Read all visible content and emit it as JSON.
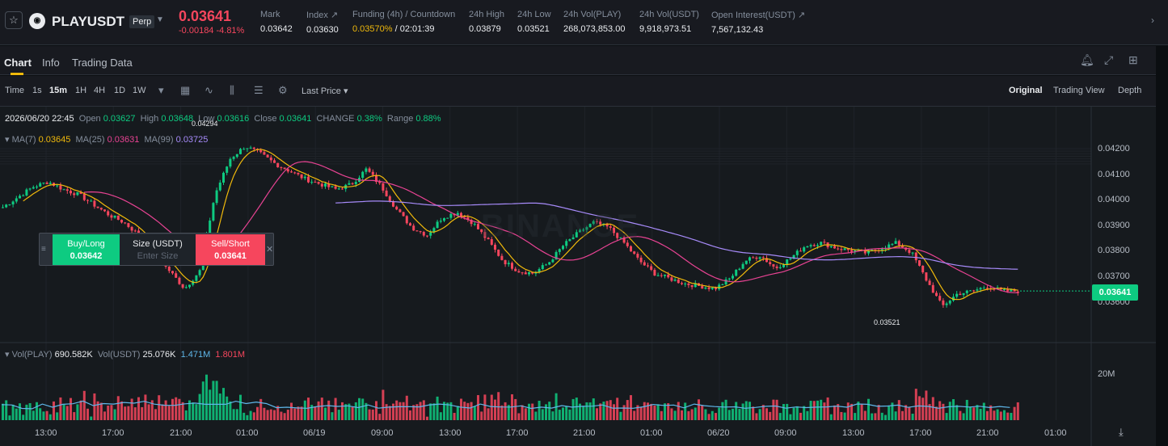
{
  "header": {
    "star_icon": "☆",
    "symbol": "PLAYUSDT",
    "badge": "Perp",
    "price": "0.03641",
    "change": "-0.00184 -4.81%",
    "stats": [
      {
        "label": "Mark",
        "value": "0.03642"
      },
      {
        "label": "Index ↗",
        "value": "0.03630"
      },
      {
        "label": "Funding (4h) / Countdown",
        "value_a": "0.03570%",
        "value_b": " / 02:01:39"
      },
      {
        "label": "24h High",
        "value": "0.03879"
      },
      {
        "label": "24h Low",
        "value": "0.03521"
      },
      {
        "label": "24h Vol(PLAY)",
        "value": "268,073,853.00"
      },
      {
        "label": "24h Vol(USDT)",
        "value": "9,918,973.51"
      },
      {
        "label": "Open Interest(USDT) ↗",
        "value": "7,567,132.43"
      }
    ]
  },
  "tabs": [
    {
      "label": "Chart"
    },
    {
      "label": "Info"
    },
    {
      "label": "Trading Data"
    }
  ],
  "toolbar": {
    "intervals": [
      "Time",
      "1s",
      "15m",
      "1H",
      "4H",
      "1D",
      "1W"
    ],
    "price_type": "Last Price ▾",
    "views": [
      "Original",
      "Trading View",
      "Depth"
    ]
  },
  "ohlc": {
    "date": "2026/06/20 22:45",
    "open_l": "Open",
    "open": "0.03627",
    "high_l": "High",
    "high": "0.03648",
    "low_l": "Low",
    "low": "0.03616",
    "close_l": "Close",
    "close": "0.03641",
    "change_l": "CHANGE",
    "change": "0.38%",
    "range_l": "Range",
    "range": "0.88%"
  },
  "ma": {
    "ma7_l": "MA(7)",
    "ma7": "0.03645",
    "ma25_l": "MA(25)",
    "ma25": "0.03631",
    "ma99_l": "MA(99)",
    "ma99": "0.03725"
  },
  "vol": {
    "l1": "Vol(PLAY)",
    "v1": "690.582K",
    "l2": "Vol(USDT)",
    "v2": "25.076K",
    "v3": "1.471M",
    "v4": "1.801M",
    "axis": "20M"
  },
  "yaxis": [
    "0.04200",
    "0.04100",
    "0.04000",
    "0.03900",
    "0.03800",
    "0.03700",
    "0.03600"
  ],
  "xaxis": [
    "13:00",
    "17:00",
    "21:00",
    "01:00",
    "06/19",
    "09:00",
    "13:00",
    "17:00",
    "21:00",
    "01:00",
    "06/20",
    "09:00",
    "13:00",
    "17:00",
    "21:00",
    "01:00"
  ],
  "current_price": "0.03641",
  "high_marker": "0.04294",
  "low_marker": "0.03521",
  "watermark": "BINANCE",
  "order_panel": {
    "buy_label": "Buy/Long",
    "buy_price": "0.03642",
    "size_label": "Size (USDT)",
    "size_placeholder": "Enter Size",
    "sell_label": "Sell/Short",
    "sell_price": "0.03641"
  },
  "chart_data": {
    "type": "candlestick",
    "ylim": [
      0.0355,
      0.0432
    ],
    "close_trend": [
      0.0397,
      0.0401,
      0.0405,
      0.0407,
      0.0404,
      0.0402,
      0.0398,
      0.0394,
      0.0391,
      0.0386,
      0.0378,
      0.0372,
      0.0365,
      0.0372,
      0.0402,
      0.0416,
      0.0421,
      0.0418,
      0.0414,
      0.0411,
      0.0408,
      0.0406,
      0.0404,
      0.0406,
      0.0412,
      0.0405,
      0.0396,
      0.0389,
      0.0386,
      0.0393,
      0.0395,
      0.0391,
      0.0384,
      0.0376,
      0.0372,
      0.0371,
      0.0375,
      0.0382,
      0.0387,
      0.0391,
      0.0389,
      0.0383,
      0.0376,
      0.0371,
      0.0369,
      0.0367,
      0.0366,
      0.0365,
      0.0369,
      0.0376,
      0.0378,
      0.0373,
      0.0377,
      0.0382,
      0.0383,
      0.0381,
      0.038,
      0.0379,
      0.0381,
      0.0383,
      0.0379,
      0.0368,
      0.0358,
      0.0363,
      0.0364,
      0.0366,
      0.0364,
      0.0364
    ]
  },
  "colors": {
    "up": "#0ecb81",
    "down": "#f6465d",
    "ma7": "#f0b90b",
    "ma25": "#e84393",
    "ma99": "#a78bfa",
    "vol_line": "#5fb7ea"
  }
}
